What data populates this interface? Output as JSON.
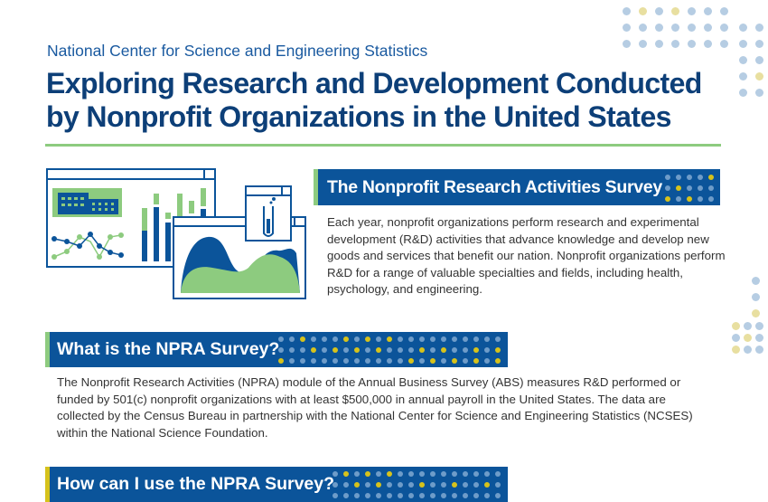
{
  "header": {
    "organization": "National Center for Science and Engineering Statistics",
    "title_line1": "Exploring Research and Development Conducted",
    "title_line2": "by Nonprofit Organizations in the United States"
  },
  "colors": {
    "navy": "#0b549a",
    "title": "#0d3f78",
    "green": "#8dcb7f",
    "yellow": "#d6c21c",
    "dot_blue": "#6e9cc9"
  },
  "sections": [
    {
      "heading": "The Nonprofit Research Activities Survey",
      "body": "Each year, nonprofit organizations perform research and experimental development (R&D) activities that advance knowledge and develop new goods and services that benefit our nation. Nonprofit organizations perform R&D for a range of valuable specialties and fields, including health, psychology, and engineering."
    },
    {
      "heading": "What is the NPRA Survey?",
      "body": "The Nonprofit Research Activities (NPRA) module of the Annual Business Survey (ABS) measures R&D performed or funded by 501(c) nonprofit organizations with at least $500,000 in annual payroll in the United States. The data are collected by the Census Bureau in partnership with the National Center for Science and Engineering Statistics (NCSES) within the National Science Foundation."
    },
    {
      "heading": "How can I use the NPRA Survey?"
    }
  ],
  "illustration": {
    "icons": [
      "building-icon",
      "bar-chart-icon",
      "line-chart-icon",
      "test-tube-icon",
      "area-chart-icon"
    ]
  }
}
